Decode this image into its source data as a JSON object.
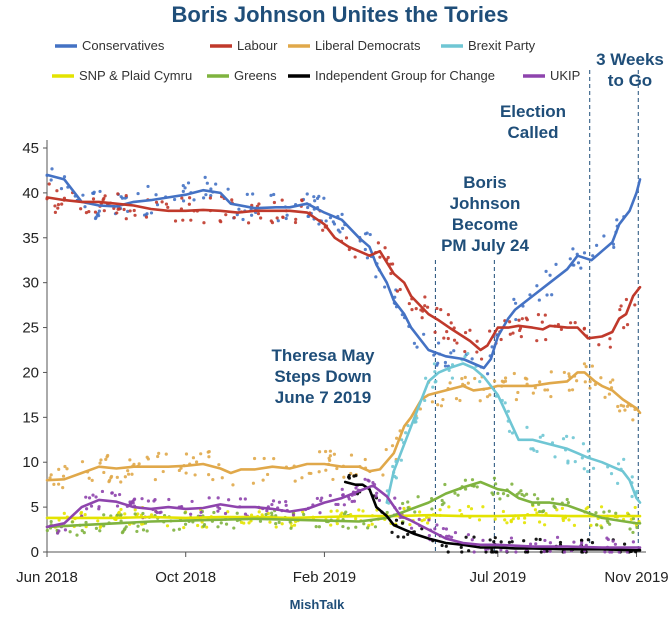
{
  "chart_data": {
    "type": "line",
    "title": "Boris Johnson Unites the Tories",
    "credit": "MishTalk",
    "xlabel": "",
    "ylabel": "",
    "ylim": [
      0,
      45
    ],
    "y_ticks": [
      0,
      5,
      10,
      15,
      20,
      25,
      30,
      35,
      40,
      45
    ],
    "x_ticks": [
      {
        "label": "Jun 2018",
        "t": 0
      },
      {
        "label": "Oct 2018",
        "t": 4
      },
      {
        "label": "Feb 2019",
        "t": 8
      },
      {
        "label": "Jul 2019",
        "t": 13
      },
      {
        "label": "Nov 2019",
        "t": 17
      }
    ],
    "xlim": [
      0,
      17.1
    ],
    "series": [
      {
        "name": "Conservatives",
        "color": "#4472c4",
        "points": [
          [
            0,
            42
          ],
          [
            0.5,
            41.5
          ],
          [
            1,
            39
          ],
          [
            1.5,
            38.6
          ],
          [
            2,
            38.5
          ],
          [
            2.5,
            39
          ],
          [
            3,
            39.2
          ],
          [
            3.5,
            39.5
          ],
          [
            4,
            39.8
          ],
          [
            4.5,
            40.3
          ],
          [
            5,
            40
          ],
          [
            5.3,
            38.8
          ],
          [
            6,
            38.3
          ],
          [
            6.6,
            38.4
          ],
          [
            7,
            38.4
          ],
          [
            7.5,
            38.8
          ],
          [
            8,
            37.8
          ],
          [
            8.5,
            37
          ],
          [
            9,
            35
          ],
          [
            9.3,
            34
          ],
          [
            9.5,
            32
          ],
          [
            9.8,
            30
          ],
          [
            10,
            28
          ],
          [
            10.3,
            26.5
          ],
          [
            10.5,
            25
          ],
          [
            11,
            22.5
          ],
          [
            11.5,
            21.8
          ],
          [
            12,
            21.5
          ],
          [
            12.3,
            21
          ],
          [
            12.6,
            20.5
          ],
          [
            12.8,
            21.5
          ],
          [
            13,
            24
          ],
          [
            13.3,
            26
          ],
          [
            13.5,
            27
          ],
          [
            14,
            28.5
          ],
          [
            14.5,
            30
          ],
          [
            15,
            31.5
          ],
          [
            15.3,
            33
          ],
          [
            15.7,
            32.5
          ],
          [
            16,
            33.5
          ],
          [
            16.3,
            34.5
          ],
          [
            16.5,
            36.5
          ],
          [
            16.7,
            37.5
          ],
          [
            16.8,
            38
          ],
          [
            17,
            40
          ],
          [
            17.1,
            41.5
          ]
        ]
      },
      {
        "name": "Labour",
        "color": "#c0392b",
        "points": [
          [
            0,
            39.5
          ],
          [
            0.5,
            39.2
          ],
          [
            1,
            39
          ],
          [
            1.5,
            39
          ],
          [
            2,
            38.8
          ],
          [
            2.5,
            38.6
          ],
          [
            3,
            38.2
          ],
          [
            3.5,
            38
          ],
          [
            4,
            38
          ],
          [
            4.5,
            38.1
          ],
          [
            5,
            38
          ],
          [
            5.5,
            37.8
          ],
          [
            6,
            38
          ],
          [
            6.5,
            38
          ],
          [
            7,
            38
          ],
          [
            7.5,
            37.8
          ],
          [
            8,
            36.5
          ],
          [
            8.3,
            35
          ],
          [
            8.7,
            34
          ],
          [
            9,
            33.5
          ],
          [
            9.3,
            33
          ],
          [
            9.6,
            33.5
          ],
          [
            10,
            31
          ],
          [
            10.3,
            30
          ],
          [
            10.5,
            28.5
          ],
          [
            11,
            26.5
          ],
          [
            11.3,
            25.8
          ],
          [
            11.6,
            25
          ],
          [
            12,
            24
          ],
          [
            12.2,
            23.5
          ],
          [
            12.5,
            22.5
          ],
          [
            12.7,
            23
          ],
          [
            13,
            25
          ],
          [
            13.3,
            25
          ],
          [
            13.6,
            25.2
          ],
          [
            14,
            25
          ],
          [
            14.3,
            24.8
          ],
          [
            14.5,
            25.2
          ],
          [
            15,
            25
          ],
          [
            15.3,
            25
          ],
          [
            15.6,
            23.8
          ],
          [
            16,
            24
          ],
          [
            16.3,
            24.5
          ],
          [
            16.5,
            26
          ],
          [
            16.7,
            26.5
          ],
          [
            16.9,
            28.5
          ],
          [
            17.1,
            29.5
          ]
        ]
      },
      {
        "name": "Liberal Democrats",
        "color": "#e0a84a",
        "points": [
          [
            0,
            8
          ],
          [
            0.5,
            8.1
          ],
          [
            1,
            8.8
          ],
          [
            1.5,
            9.5
          ],
          [
            2,
            9.3
          ],
          [
            2.5,
            9.5
          ],
          [
            3,
            9.5
          ],
          [
            3.5,
            9.5
          ],
          [
            4,
            9.6
          ],
          [
            4.5,
            9.8
          ],
          [
            5,
            9.3
          ],
          [
            5.3,
            8.8
          ],
          [
            5.6,
            9.2
          ],
          [
            6,
            9.2
          ],
          [
            6.5,
            9.5
          ],
          [
            7,
            9.3
          ],
          [
            7.5,
            9.8
          ],
          [
            8,
            9.8
          ],
          [
            8.5,
            9.5
          ],
          [
            9,
            9.5
          ],
          [
            9.3,
            9
          ],
          [
            9.6,
            9.2
          ],
          [
            10,
            11
          ],
          [
            10.3,
            14
          ],
          [
            10.5,
            15
          ],
          [
            10.8,
            17
          ],
          [
            11,
            17.5
          ],
          [
            11.5,
            18
          ],
          [
            12,
            18.5
          ],
          [
            12.3,
            18
          ],
          [
            12.7,
            18.2
          ],
          [
            13,
            18.5
          ],
          [
            13.5,
            18.5
          ],
          [
            14,
            18.5
          ],
          [
            14.5,
            18.8
          ],
          [
            15,
            19
          ],
          [
            15.3,
            20
          ],
          [
            15.5,
            20
          ],
          [
            15.8,
            19
          ],
          [
            16,
            18.5
          ],
          [
            16.3,
            18
          ],
          [
            16.6,
            17
          ],
          [
            17,
            16
          ],
          [
            17.1,
            15.5
          ]
        ]
      },
      {
        "name": "Brexit Party",
        "color": "#6fc6d4",
        "points": [
          [
            9.8,
            5.5
          ],
          [
            10,
            9
          ],
          [
            10.3,
            12
          ],
          [
            10.5,
            14
          ],
          [
            10.8,
            17
          ],
          [
            11,
            19
          ],
          [
            11.3,
            20
          ],
          [
            11.6,
            20.5
          ],
          [
            12,
            21
          ],
          [
            12.3,
            20.5
          ],
          [
            12.6,
            19.5
          ],
          [
            13,
            17.5
          ],
          [
            13.3,
            15
          ],
          [
            13.6,
            12.5
          ],
          [
            14,
            12.5
          ],
          [
            14.5,
            12
          ],
          [
            15,
            11.5
          ],
          [
            15.3,
            11
          ],
          [
            15.6,
            10.5
          ],
          [
            16,
            10
          ],
          [
            16.3,
            9.5
          ],
          [
            16.6,
            9
          ],
          [
            16.8,
            8
          ],
          [
            17,
            6
          ],
          [
            17.1,
            5.5
          ]
        ]
      },
      {
        "name": "SNP & Plaid Cymru",
        "color": "#e3e300",
        "points": [
          [
            0,
            3.8
          ],
          [
            1,
            3.8
          ],
          [
            2,
            3.8
          ],
          [
            3,
            3.9
          ],
          [
            4,
            3.8
          ],
          [
            5,
            3.9
          ],
          [
            6,
            3.9
          ],
          [
            7,
            3.8
          ],
          [
            8,
            3.9
          ],
          [
            9,
            4
          ],
          [
            10,
            4
          ],
          [
            11,
            4.1
          ],
          [
            12,
            4
          ],
          [
            13,
            4
          ],
          [
            14,
            4.1
          ],
          [
            15,
            4
          ],
          [
            16,
            4
          ],
          [
            17,
            4
          ],
          [
            17.1,
            4
          ]
        ]
      },
      {
        "name": "Greens",
        "color": "#7fb33f",
        "points": [
          [
            0,
            2.8
          ],
          [
            1,
            3
          ],
          [
            2,
            3.2
          ],
          [
            3,
            3.4
          ],
          [
            4,
            3.5
          ],
          [
            5,
            3.6
          ],
          [
            6,
            3.7
          ],
          [
            7,
            3.6
          ],
          [
            8,
            3.5
          ],
          [
            9,
            3.4
          ],
          [
            9.8,
            3.8
          ],
          [
            10.3,
            4.5
          ],
          [
            11,
            5.5
          ],
          [
            11.5,
            6.5
          ],
          [
            12,
            7.2
          ],
          [
            12.5,
            7.8
          ],
          [
            13,
            7
          ],
          [
            13.3,
            6.8
          ],
          [
            13.6,
            6
          ],
          [
            14,
            5.5
          ],
          [
            14.5,
            5.5
          ],
          [
            15,
            5.2
          ],
          [
            15.5,
            4.5
          ],
          [
            16,
            3.8
          ],
          [
            16.5,
            3.5
          ],
          [
            17,
            3.2
          ],
          [
            17.1,
            3.2
          ]
        ]
      },
      {
        "name": "Independent Group for Change",
        "color": "#000000",
        "points": [
          [
            8.6,
            7.8
          ],
          [
            8.9,
            7.5
          ],
          [
            9.1,
            7.5
          ],
          [
            9.3,
            7
          ],
          [
            9.5,
            5
          ],
          [
            9.8,
            4
          ],
          [
            10,
            3
          ],
          [
            10.3,
            2.5
          ],
          [
            10.6,
            2
          ],
          [
            11,
            1.5
          ],
          [
            11.5,
            1
          ],
          [
            12,
            0.8
          ],
          [
            12.5,
            0.5
          ],
          [
            13,
            0.5
          ],
          [
            13.5,
            0.4
          ],
          [
            14,
            0.4
          ],
          [
            15,
            0.3
          ],
          [
            16,
            0.3
          ],
          [
            17,
            0.2
          ],
          [
            17.1,
            0.2
          ]
        ]
      },
      {
        "name": "UKIP",
        "color": "#8e44ad",
        "points": [
          [
            0,
            2.8
          ],
          [
            0.5,
            3.2
          ],
          [
            1,
            5
          ],
          [
            1.5,
            5.8
          ],
          [
            2,
            5.6
          ],
          [
            2.5,
            5
          ],
          [
            3,
            4.8
          ],
          [
            3.5,
            5
          ],
          [
            4,
            4.8
          ],
          [
            4.5,
            4.9
          ],
          [
            5,
            5.3
          ],
          [
            5.5,
            5
          ],
          [
            6,
            5
          ],
          [
            6.5,
            4.8
          ],
          [
            7,
            4.5
          ],
          [
            7.5,
            4.8
          ],
          [
            8,
            5.5
          ],
          [
            8.5,
            6
          ],
          [
            9,
            6.8
          ],
          [
            9.4,
            7.4
          ],
          [
            9.8,
            6.2
          ],
          [
            10.2,
            4
          ],
          [
            10.5,
            3.5
          ],
          [
            11,
            2.5
          ],
          [
            11.5,
            1.5
          ],
          [
            12,
            1
          ],
          [
            12.5,
            0.8
          ],
          [
            13,
            0.8
          ],
          [
            14,
            0.6
          ],
          [
            15,
            0.6
          ],
          [
            16,
            0.5
          ],
          [
            17,
            0.5
          ],
          [
            17.1,
            0.5
          ]
        ]
      }
    ],
    "events": [
      {
        "label": "Theresa May Steps Down June 7 2019",
        "t": 11.2
      },
      {
        "label": "Boris Johnson Become PM July 24",
        "t": 12.9
      },
      {
        "label": "Election Called",
        "t": 15.65
      },
      {
        "label": "3 Weeks to Go",
        "t": 17.05
      }
    ],
    "annotations": [
      {
        "lines": [
          "Theresa May",
          "Steps Down",
          "June 7 2019"
        ]
      },
      {
        "lines": [
          "Boris",
          "Johnson",
          "Become",
          "PM July 24"
        ]
      },
      {
        "lines": [
          "Election",
          "Called"
        ]
      },
      {
        "lines": [
          "3 Weeks",
          "to Go"
        ]
      }
    ]
  }
}
